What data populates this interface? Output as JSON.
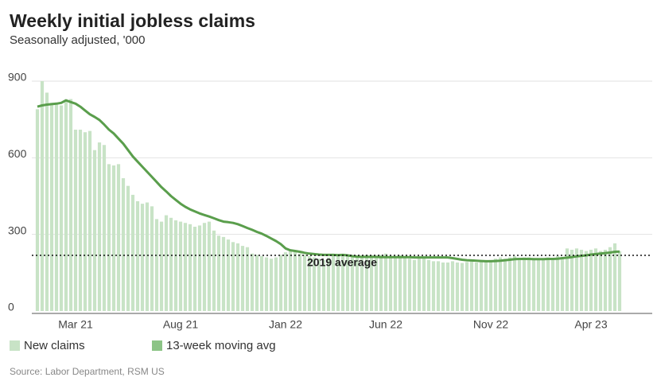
{
  "chart_data": {
    "type": "bar",
    "title": "Weekly initial jobless claims",
    "subtitle": "Seasonally adjusted, '000",
    "source": "Source: Labor Department, RSM US",
    "categories": [
      null,
      null,
      null,
      null,
      null,
      null,
      null,
      null,
      "Mar 21",
      null,
      null,
      null,
      null,
      null,
      null,
      null,
      null,
      null,
      null,
      null,
      null,
      null,
      null,
      null,
      null,
      null,
      null,
      null,
      null,
      null,
      "Aug 21",
      null,
      null,
      null,
      null,
      null,
      null,
      null,
      null,
      null,
      null,
      null,
      null,
      null,
      null,
      null,
      null,
      null,
      null,
      null,
      null,
      null,
      "Jan 22",
      null,
      null,
      null,
      null,
      null,
      null,
      null,
      null,
      null,
      null,
      null,
      null,
      null,
      null,
      null,
      null,
      null,
      null,
      null,
      null,
      "Jun 22",
      null,
      null,
      null,
      null,
      null,
      null,
      null,
      null,
      null,
      null,
      null,
      null,
      null,
      null,
      null,
      null,
      null,
      null,
      null,
      null,
      null,
      "Nov 22",
      null,
      null,
      null,
      null,
      null,
      null,
      null,
      null,
      null,
      null,
      null,
      null,
      null,
      null,
      null,
      null,
      null,
      null,
      null,
      null,
      "Apr 23",
      null,
      null,
      null,
      null,
      null,
      null
    ],
    "series": [
      {
        "name": "New claims",
        "type": "bar",
        "color": "#c8e3c6",
        "values": [
          790,
          900,
          855,
          815,
          812,
          805,
          820,
          830,
          710,
          710,
          700,
          705,
          630,
          660,
          650,
          575,
          570,
          575,
          520,
          490,
          455,
          430,
          420,
          425,
          410,
          360,
          350,
          375,
          365,
          355,
          350,
          345,
          340,
          330,
          335,
          345,
          350,
          315,
          295,
          290,
          280,
          270,
          265,
          255,
          250,
          225,
          220,
          215,
          210,
          205,
          210,
          220,
          230,
          240,
          235,
          225,
          220,
          215,
          210,
          205,
          200,
          210,
          215,
          220,
          215,
          218,
          215,
          210,
          215,
          220,
          218,
          215,
          220,
          225,
          215,
          215,
          218,
          210,
          205,
          200,
          205,
          210,
          200,
          195,
          195,
          190,
          190,
          195,
          190,
          188,
          192,
          195,
          190,
          195,
          192,
          200,
          205,
          210,
          205,
          210,
          215,
          205,
          210,
          210,
          200,
          205,
          205,
          210,
          205,
          215,
          210,
          245,
          240,
          245,
          240,
          235,
          240,
          245,
          235,
          240,
          250,
          265,
          235
        ]
      },
      {
        "name": "13-week moving avg",
        "type": "line",
        "color": "#5a9e4c",
        "values": [
          800,
          805,
          808,
          810,
          812,
          815,
          825,
          818,
          812,
          800,
          785,
          770,
          760,
          748,
          730,
          710,
          695,
          675,
          655,
          630,
          605,
          585,
          565,
          545,
          525,
          505,
          485,
          468,
          450,
          435,
          420,
          408,
          398,
          390,
          382,
          376,
          370,
          363,
          356,
          350,
          348,
          345,
          340,
          333,
          325,
          318,
          310,
          303,
          294,
          284,
          274,
          262,
          245,
          238,
          235,
          232,
          228,
          225,
          223,
          221,
          220,
          220,
          220,
          219,
          220,
          218,
          215,
          213,
          212,
          212,
          212,
          212,
          211,
          211,
          211,
          211,
          211,
          211,
          211,
          210,
          210,
          210,
          210,
          210,
          210,
          210,
          210,
          207,
          204,
          201,
          199,
          198,
          197,
          196,
          195,
          195,
          196,
          197,
          199,
          201,
          203,
          204,
          204,
          204,
          203,
          203,
          203,
          204,
          204,
          205,
          207,
          209,
          211,
          214,
          216,
          218,
          221,
          223,
          225,
          227,
          229,
          232,
          233
        ]
      }
    ],
    "annotation": {
      "label": "2019 average",
      "value": 218
    },
    "ylim": [
      0,
      900
    ],
    "yticks": [
      0,
      300,
      600,
      900
    ],
    "grid": true
  }
}
